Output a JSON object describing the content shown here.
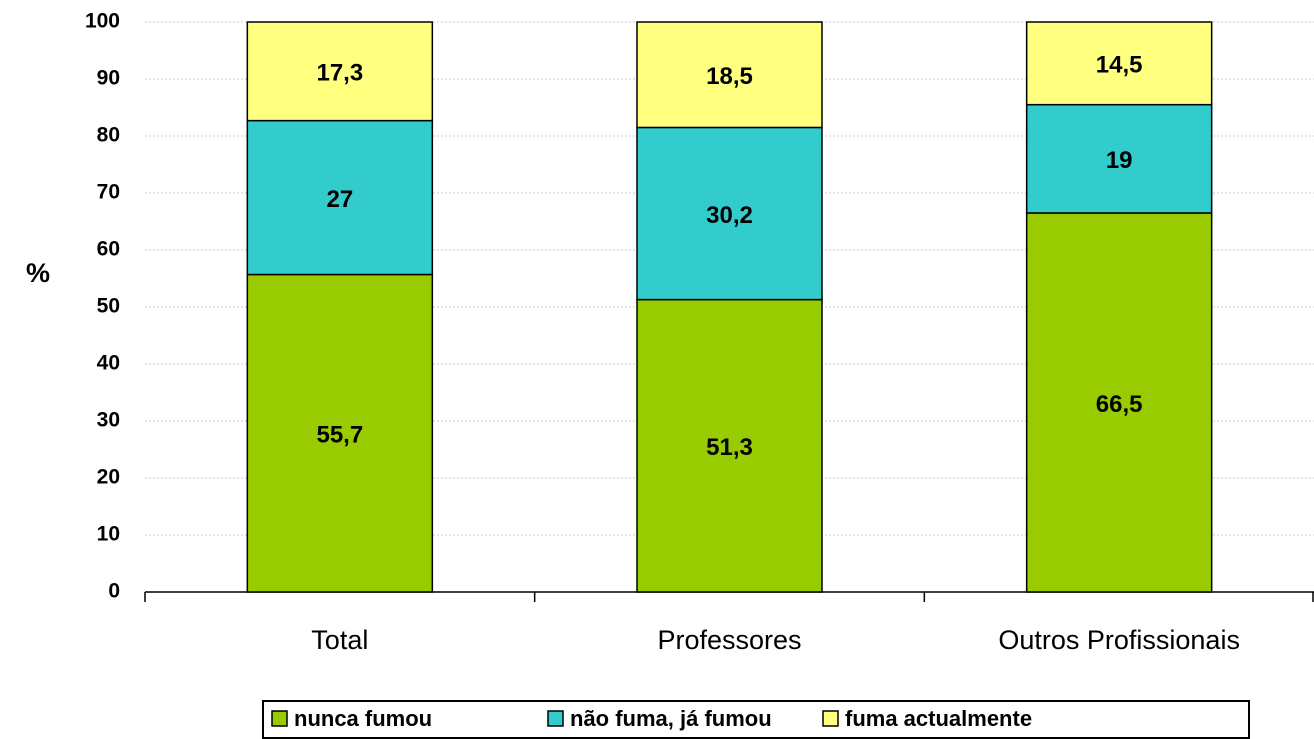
{
  "chart_data": {
    "type": "stacked_bar",
    "y_label": "%",
    "categories": [
      "Total",
      "Professores",
      "Outros Profissionais"
    ],
    "series": [
      {
        "name": "nunca fumou",
        "color": "#99cc00",
        "values": [
          55.7,
          51.3,
          66.5
        ],
        "value_labels": [
          "55,7",
          "51,3",
          "66,5"
        ]
      },
      {
        "name": "não fuma, já fumou",
        "color": "#33cccc",
        "values": [
          27,
          30.2,
          19
        ],
        "value_labels": [
          "27",
          "30,2",
          "19"
        ]
      },
      {
        "name": "fuma actualmente",
        "color": "#ffff80",
        "values": [
          17.3,
          18.5,
          14.5
        ],
        "value_labels": [
          "17,3",
          "18,5",
          "14,5"
        ]
      }
    ],
    "ylim": [
      0,
      100
    ],
    "yticks": [
      0,
      10,
      20,
      30,
      40,
      50,
      60,
      70,
      80,
      90,
      100
    ],
    "grid": true,
    "legend": "bottom"
  }
}
